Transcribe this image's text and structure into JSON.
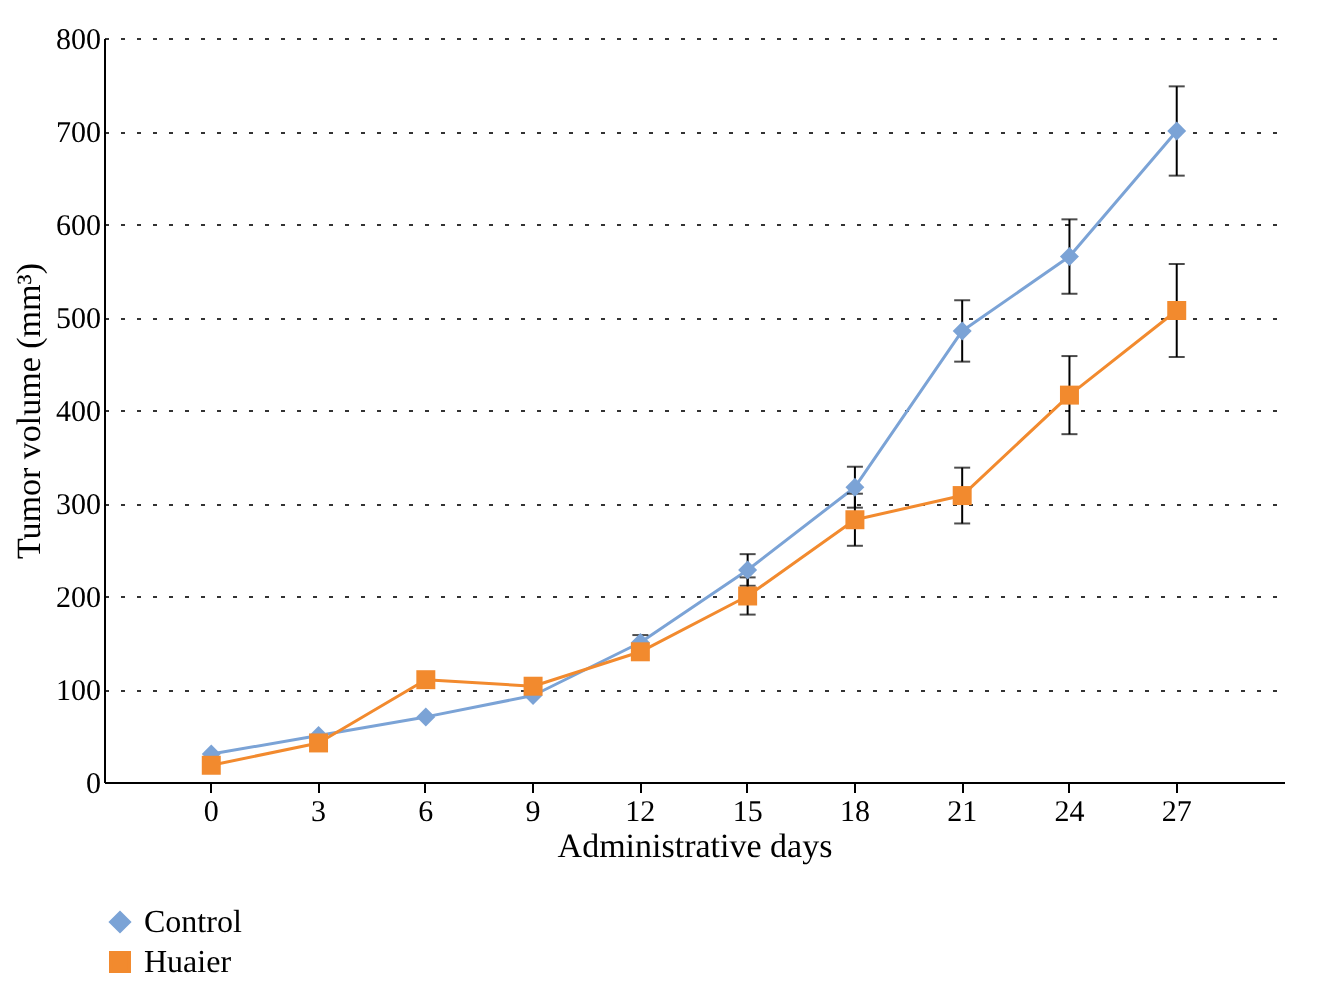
{
  "chart_data": {
    "type": "line",
    "xlabel": "Administrative days",
    "ylabel": "Tumor volume (mm³)",
    "categories": [
      "0",
      "3",
      "6",
      "9",
      "12",
      "15",
      "18",
      "21",
      "24",
      "27"
    ],
    "ylim": [
      0,
      800
    ],
    "yticks": [
      0,
      100,
      200,
      300,
      400,
      500,
      600,
      700,
      800
    ],
    "grid": "y",
    "legend": "bottom left",
    "line_style": "solid",
    "series": [
      {
        "name": "Control",
        "color": "#7ba3d6",
        "marker": "diamond",
        "values": [
          30,
          50,
          70,
          93,
          150,
          228,
          317,
          485,
          565,
          700
        ],
        "errors": [
          null,
          null,
          null,
          null,
          8,
          17,
          22,
          33,
          40,
          48
        ]
      },
      {
        "name": "Huaier",
        "color": "#f28a2e",
        "marker": "square",
        "values": [
          18,
          42,
          110,
          103,
          140,
          200,
          282,
          308,
          416,
          507
        ],
        "errors": [
          null,
          null,
          null,
          null,
          null,
          20,
          28,
          30,
          42,
          50
        ]
      }
    ]
  }
}
